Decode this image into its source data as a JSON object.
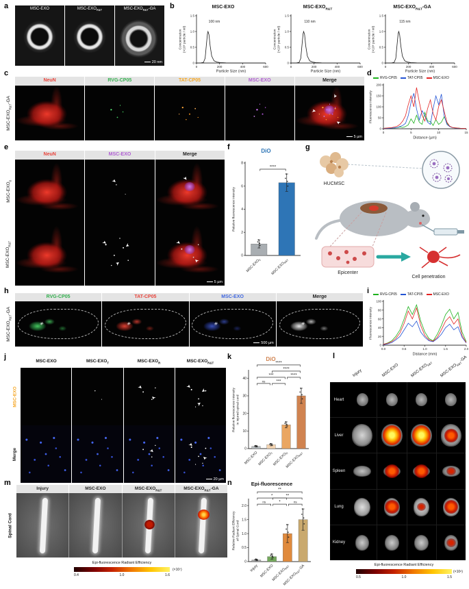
{
  "labels": {
    "exo": {
      "base": "MSC-EXO",
      "sub": "",
      "suffix": ""
    },
    "exo_rt": {
      "base": "MSC-EXO",
      "sub": "R&T",
      "suffix": ""
    },
    "exo_rt_ga": {
      "base": "MSC-EXO",
      "sub": "R&T",
      "suffix": "-GA"
    },
    "exo_0": {
      "base": "MSC-EXO",
      "sub": "0",
      "suffix": ""
    },
    "exo_t": {
      "base": "MSC-EXO",
      "sub": "T",
      "suffix": ""
    },
    "exo_r": {
      "base": "MSC-EXO",
      "sub": "R",
      "suffix": ""
    },
    "injury": {
      "base": "Injury",
      "sub": "",
      "suffix": ""
    },
    "merge": "Merge"
  },
  "a": {
    "letter": "a",
    "scalebar": "20 nm"
  },
  "b": {
    "letter": "b"
  },
  "c": {
    "letter": "c",
    "scalebar": "5 µm",
    "headers": [
      {
        "text": "NeuN",
        "color": "#e8453c"
      },
      {
        "text": "RVG-CP05",
        "color": "#35b050"
      },
      {
        "text": "TAT-CP05",
        "color": "#f5a623"
      },
      {
        "text": "MSC-EXO",
        "color": "#b05fd3"
      },
      {
        "text": "Merge",
        "color": "#222222"
      }
    ]
  },
  "d": {
    "letter": "d"
  },
  "e": {
    "letter": "e",
    "scalebar": "5 µm",
    "headers": [
      {
        "text": "NeuN",
        "color": "#e8453c"
      },
      {
        "text": "MSC-EXO",
        "color": "#b05fd3"
      },
      {
        "text": "Merge",
        "color": "#222222"
      }
    ]
  },
  "f": {
    "letter": "f"
  },
  "g": {
    "letter": "g",
    "hucmsc": "HUCMSC",
    "epicenter": "Epicenter",
    "penetration": "Cell penetration"
  },
  "h": {
    "letter": "h",
    "scalebar": "500 µm",
    "headers": [
      {
        "text": "RVG-CP05",
        "color": "#35b050"
      },
      {
        "text": "TAT-CP05",
        "color": "#e8453c"
      },
      {
        "text": "MSC-EXO",
        "color": "#4169e1"
      },
      {
        "text": "Merge",
        "color": "#222222"
      }
    ]
  },
  "i": {
    "letter": "i"
  },
  "j": {
    "letter": "j",
    "scalebar": "20 µm",
    "row1_color": "#f5a623",
    "row2_color": "#222222"
  },
  "k": {
    "letter": "k"
  },
  "l": {
    "letter": "l",
    "organs": [
      "Heart",
      "Liver",
      "Spleen",
      "Lung",
      "Kidney"
    ],
    "colorbar": {
      "caption": "Epi-fluorescence Radiant Efficiency",
      "ticks": [
        "0.5",
        "1.0",
        "1.5"
      ],
      "exp": "(×10⁸)"
    }
  },
  "m": {
    "letter": "m",
    "rowlabel": "Spinal Cord",
    "colorbar": {
      "caption": "Epi-fluorescence Radiant Efficiency",
      "ticks": [
        "0.4",
        "1.0",
        "1.6"
      ],
      "exp": "(×10⁷)"
    }
  },
  "n": {
    "letter": "n"
  },
  "chart_data": [
    {
      "id": "b0",
      "type": "line",
      "xlim": [
        0,
        600
      ],
      "ylim": [
        0,
        1.5
      ],
      "xticks": [
        0,
        200,
        400,
        600
      ],
      "yticks": [
        0,
        0.5,
        1,
        1.5
      ],
      "ytl": [
        "0",
        "0.5",
        "1.0",
        "1.5"
      ],
      "xlabel": "Particle Size (nm)",
      "ylabel": [
        "Concentration",
        "(×10⁸ particle / ml)"
      ],
      "ann": {
        "text": "100 nm",
        "x": 105,
        "y": 1.28
      },
      "series": [
        {
          "name": "MSC-EXO",
          "color": "#1a1a1a",
          "x": [
            0,
            40,
            60,
            75,
            85,
            95,
            100,
            108,
            118,
            132,
            152,
            178,
            205,
            255,
            310,
            400,
            500,
            600
          ],
          "y": [
            0,
            0.005,
            0.02,
            0.15,
            0.55,
            0.93,
            1.0,
            0.9,
            0.55,
            0.22,
            0.07,
            0.03,
            0.012,
            0.005,
            0,
            0,
            0,
            0
          ]
        }
      ]
    },
    {
      "id": "b1",
      "type": "line",
      "xlim": [
        0,
        600
      ],
      "ylim": [
        0,
        1.5
      ],
      "xticks": [
        0,
        200,
        400,
        600
      ],
      "yticks": [
        0,
        0.5,
        1,
        1.5
      ],
      "ytl": [
        "0",
        "0.5",
        "1.0",
        "1.5"
      ],
      "xlabel": "Particle Size (nm)",
      "ylabel": [
        "Concentration",
        "(×10⁸ particle / ml)"
      ],
      "ann": {
        "text": "110 nm",
        "x": 115,
        "y": 1.28
      },
      "series": [
        {
          "name": "MSC-EXO R&T",
          "color": "#1a1a1a",
          "x": [
            0,
            50,
            70,
            85,
            95,
            105,
            110,
            118,
            128,
            142,
            162,
            188,
            215,
            265,
            320,
            410,
            500,
            600
          ],
          "y": [
            0,
            0.005,
            0.02,
            0.15,
            0.55,
            0.93,
            1.0,
            0.9,
            0.55,
            0.22,
            0.07,
            0.03,
            0.012,
            0.005,
            0,
            0,
            0,
            0
          ]
        }
      ]
    },
    {
      "id": "b2",
      "type": "line",
      "xlim": [
        0,
        600
      ],
      "ylim": [
        0,
        1.5
      ],
      "xticks": [
        0,
        200,
        400,
        600
      ],
      "yticks": [
        0,
        0.5,
        1,
        1.5
      ],
      "ytl": [
        "0",
        "0.5",
        "1.0",
        "1.5"
      ],
      "xlabel": "Particle Size (nm)",
      "ylabel": [
        "Concentration",
        "(×10⁸ particle / ml)"
      ],
      "ann": {
        "text": "115 nm",
        "x": 120,
        "y": 1.28
      },
      "series": [
        {
          "name": "MSC-EXO R&T-GA",
          "color": "#1a1a1a",
          "x": [
            0,
            55,
            75,
            90,
            100,
            110,
            115,
            123,
            133,
            147,
            167,
            193,
            220,
            270,
            325,
            415,
            500,
            600
          ],
          "y": [
            0,
            0.005,
            0.02,
            0.15,
            0.55,
            0.93,
            1.0,
            0.9,
            0.55,
            0.22,
            0.07,
            0.03,
            0.012,
            0.005,
            0,
            0,
            0,
            0
          ]
        }
      ]
    },
    {
      "id": "d",
      "type": "line",
      "xlim": [
        0,
        15
      ],
      "ylim": [
        0,
        200
      ],
      "xticks": [
        0,
        5,
        10,
        15
      ],
      "yticks": [
        0,
        50,
        100,
        150,
        200
      ],
      "xlabel": "Distance (µm)",
      "ylabel": [
        "Fluorescence intensity"
      ],
      "x": [
        0,
        0.5,
        1,
        1.5,
        2,
        2.5,
        3,
        3.5,
        4,
        4.5,
        5,
        5.5,
        6,
        6.5,
        7,
        7.5,
        8,
        8.5,
        9,
        9.5,
        10,
        10.5,
        11,
        11.5,
        12,
        12.5,
        13,
        13.5,
        14,
        14.5,
        15
      ],
      "series": [
        {
          "name": "RVG-CP05",
          "color": "#1db21d",
          "y": [
            2,
            3,
            2,
            4,
            3,
            5,
            8,
            6,
            10,
            18,
            45,
            25,
            62,
            30,
            20,
            75,
            35,
            33,
            15,
            42,
            20,
            30,
            55,
            25,
            10,
            6,
            4,
            3,
            2,
            2,
            1
          ]
        },
        {
          "name": "TAT-CP05",
          "color": "#2253d4",
          "y": [
            1,
            2,
            2,
            3,
            4,
            6,
            10,
            15,
            25,
            60,
            120,
            162,
            90,
            40,
            82,
            60,
            30,
            20,
            92,
            150,
            110,
            158,
            60,
            20,
            10,
            5,
            3,
            2,
            2,
            1,
            1
          ]
        },
        {
          "name": "MSC-EXO",
          "color": "#e32222",
          "y": [
            2,
            3,
            4,
            5,
            8,
            12,
            20,
            35,
            60,
            110,
            150,
            100,
            188,
            122,
            62,
            35,
            92,
            132,
            70,
            40,
            102,
            132,
            80,
            30,
            12,
            6,
            4,
            3,
            2,
            1,
            1
          ]
        }
      ]
    },
    {
      "id": "i",
      "type": "line",
      "xlim": [
        0,
        2
      ],
      "ylim": [
        0,
        100
      ],
      "xticks": [
        0,
        0.5,
        1,
        1.5,
        2
      ],
      "xtl": [
        "0.0",
        "0.5",
        "1.0",
        "1.5",
        "2.0"
      ],
      "yticks": [
        0,
        20,
        40,
        60,
        80,
        100
      ],
      "xlabel": "Distance (mm)",
      "ylabel": [
        "Fluorescence intensity"
      ],
      "x": [
        0,
        0.1,
        0.2,
        0.3,
        0.4,
        0.5,
        0.6,
        0.7,
        0.8,
        0.9,
        1,
        1.1,
        1.2,
        1.3,
        1.4,
        1.5,
        1.6,
        1.7,
        1.8,
        1.9,
        2
      ],
      "series": [
        {
          "name": "RVG-CP05",
          "color": "#1db21d",
          "y": [
            2,
            5,
            10,
            20,
            35,
            60,
            88,
            70,
            92,
            55,
            30,
            15,
            10,
            25,
            45,
            70,
            82,
            60,
            75,
            30,
            8
          ]
        },
        {
          "name": "TAT-CP05",
          "color": "#2253d4",
          "y": [
            1,
            3,
            6,
            12,
            20,
            35,
            50,
            42,
            55,
            30,
            18,
            10,
            8,
            15,
            25,
            40,
            48,
            35,
            42,
            18,
            5
          ]
        },
        {
          "name": "MSC-EXO",
          "color": "#e32222",
          "y": [
            2,
            4,
            8,
            15,
            28,
            50,
            78,
            60,
            85,
            45,
            22,
            12,
            9,
            18,
            35,
            55,
            65,
            48,
            60,
            22,
            6
          ]
        }
      ]
    },
    {
      "id": "f",
      "type": "bar",
      "title": "DiO",
      "ylim": [
        0,
        8
      ],
      "yticks": [
        0,
        2,
        4,
        6,
        8
      ],
      "ytl": [
        "0",
        "2",
        "4",
        "6",
        "8"
      ],
      "ylabel": [
        "Relative fluorescence intensity"
      ],
      "categories": [
        {
          "base": "MSC-EXO",
          "sub": "0",
          "suffix": ""
        },
        {
          "base": "MSC-EXO",
          "sub": "R&T",
          "suffix": ""
        }
      ],
      "values": [
        1.0,
        6.3
      ],
      "errors": [
        0.35,
        0.75
      ],
      "colors": [
        "#a9aeb2",
        "#2e75b6"
      ],
      "sigs": [
        {
          "a": 0,
          "b": 1,
          "row": 0,
          "label": "****"
        }
      ]
    },
    {
      "id": "k",
      "type": "bar",
      "title": "DiO",
      "ylim": [
        0,
        44
      ],
      "yticks": [
        0,
        10,
        20,
        30,
        40
      ],
      "ytl": [
        "0",
        "10",
        "20",
        "30",
        "40"
      ],
      "ylabel": [
        "Relative fluorescence intensity",
        "in injured spinal cord"
      ],
      "categories": [
        {
          "base": "MSC-EXO",
          "sub": "",
          "suffix": ""
        },
        {
          "base": "MSC-EXO",
          "sub": "T",
          "suffix": ""
        },
        {
          "base": "MSC-EXO",
          "sub": "R",
          "suffix": ""
        },
        {
          "base": "MSC-EXO",
          "sub": "R&T",
          "suffix": ""
        }
      ],
      "values": [
        1.3,
        2.2,
        13.5,
        30
      ],
      "errors": [
        0.4,
        0.6,
        1.7,
        4.3
      ],
      "colors": [
        "#b7bcbf",
        "#f3d3b0",
        "#eaa662",
        "#d08350"
      ],
      "sigs": [
        {
          "a": 0,
          "b": 1,
          "row": 0,
          "label": "ns"
        },
        {
          "a": 1,
          "b": 2,
          "row": 0,
          "label": "***"
        },
        {
          "a": 0,
          "b": 2,
          "row": 1,
          "label": "***"
        },
        {
          "a": 2,
          "b": 3,
          "row": 1,
          "label": "****"
        },
        {
          "a": 1,
          "b": 3,
          "row": 2,
          "label": "****"
        },
        {
          "a": 0,
          "b": 3,
          "row": 3,
          "label": "****"
        }
      ]
    },
    {
      "id": "n",
      "type": "bar",
      "title": "Epi-fluorescence",
      "ylim": [
        0,
        2.2
      ],
      "yticks": [
        0,
        0.5,
        1,
        1.5,
        2
      ],
      "ytl": [
        "0",
        "0.5",
        "1.0",
        "1.5",
        "2.0"
      ],
      "ylabel": [
        "Relative Radiant Efficiency",
        "of Spinal Cord"
      ],
      "categories": [
        {
          "base": "Injury",
          "sub": "",
          "suffix": ""
        },
        {
          "base": "MSC-EXO",
          "sub": "",
          "suffix": ""
        },
        {
          "base": "MSC-EXO",
          "sub": "R&T",
          "suffix": ""
        },
        {
          "base": "MSC-EXO",
          "sub": "R&T",
          "suffix": "-GA"
        }
      ],
      "values": [
        0.06,
        0.18,
        1.0,
        1.5
      ],
      "errors": [
        0.03,
        0.09,
        0.32,
        0.38
      ],
      "colors": [
        "#a8a8a8",
        "#74a85c",
        "#e08a3c",
        "#c9a96e"
      ],
      "sigs": [
        {
          "a": 0,
          "b": 1,
          "row": 0,
          "label": "ns"
        },
        {
          "a": 1,
          "b": 2,
          "row": 0,
          "label": "*"
        },
        {
          "a": 2,
          "b": 3,
          "row": 0,
          "label": "ns"
        },
        {
          "a": 0,
          "b": 2,
          "row": 1,
          "label": "*"
        },
        {
          "a": 1,
          "b": 3,
          "row": 1,
          "label": "**"
        },
        {
          "a": 0,
          "b": 3,
          "row": 2,
          "label": "**"
        }
      ]
    }
  ]
}
